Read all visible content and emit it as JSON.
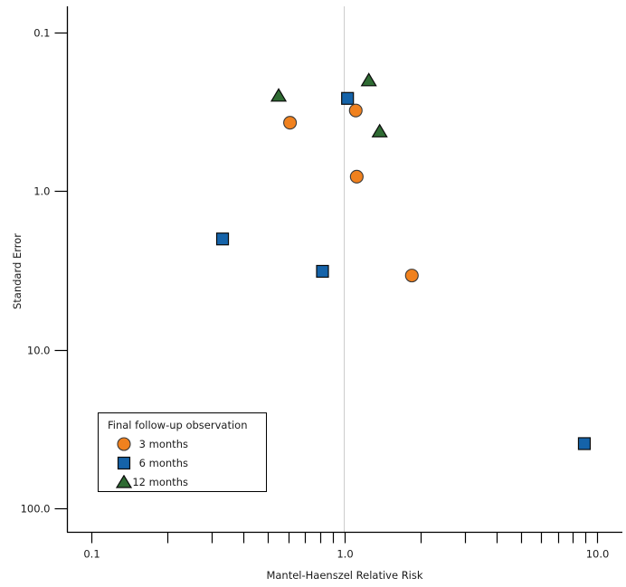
{
  "chart_data": {
    "type": "scatter",
    "title": "",
    "xlabel": "Mantel-Haenszel Relative Risk",
    "ylabel": "Standard Error",
    "x_scale": "log",
    "y_scale": "log",
    "y_axis_inverted_downward": true,
    "xlim": [
      0.08,
      12.7
    ],
    "ylim": [
      0.068,
      140
    ],
    "grid": false,
    "reference_line_x": 1.0,
    "reference_line_color": "#c9c9c9",
    "axis_color": "#000000",
    "text_color": "#1a1a1a",
    "marker_outline": "#1a1a1a",
    "legend_title": "Final follow-up observation",
    "legend_position": "lower-left",
    "x_axis": {
      "major": [
        0.1,
        1.0,
        10.0
      ],
      "major_labels": [
        "0.1",
        "1.0",
        "10.0"
      ],
      "minor": [
        0.2,
        0.3,
        0.4,
        0.5,
        0.6,
        0.7,
        0.8,
        0.9,
        2,
        3,
        4,
        5,
        6,
        7,
        8,
        9
      ]
    },
    "y_axis": {
      "major": [
        0.1,
        1.0,
        10.0,
        100.0
      ],
      "major_labels": [
        "0.1",
        "1.0",
        "10.0",
        "100.0"
      ]
    },
    "series": [
      {
        "name": "3 months",
        "marker": "circle",
        "color": "#F0811E",
        "points": [
          {
            "x": 0.61,
            "y": 0.37
          },
          {
            "x": 1.11,
            "y": 0.31
          },
          {
            "x": 1.12,
            "y": 0.81
          },
          {
            "x": 1.85,
            "y": 3.4
          }
        ]
      },
      {
        "name": "6 months",
        "marker": "square",
        "color": "#1563A9",
        "points": [
          {
            "x": 0.33,
            "y": 2.0
          },
          {
            "x": 1.03,
            "y": 0.26
          },
          {
            "x": 0.82,
            "y": 3.2
          },
          {
            "x": 8.9,
            "y": 39.0
          }
        ]
      },
      {
        "name": "12 months",
        "marker": "triangle",
        "color": "#2F6B33",
        "points": [
          {
            "x": 0.55,
            "y": 0.25
          },
          {
            "x": 1.25,
            "y": 0.2
          },
          {
            "x": 1.38,
            "y": 0.42
          }
        ]
      }
    ]
  }
}
